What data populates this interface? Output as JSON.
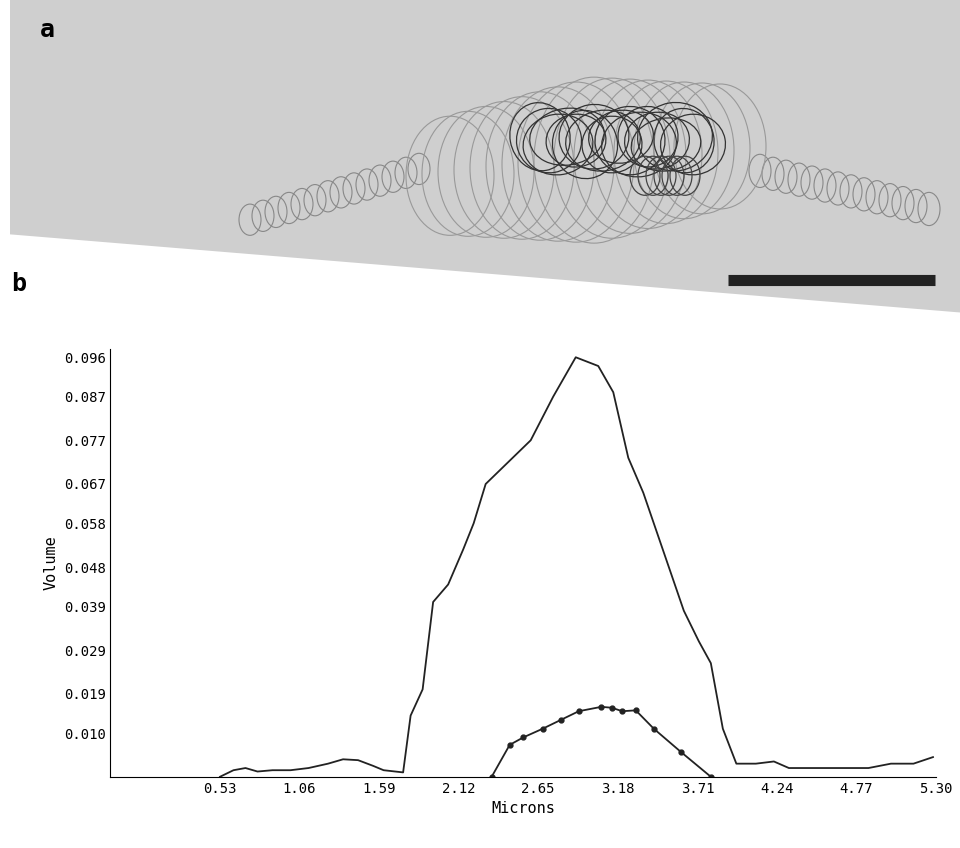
{
  "panel_labels": [
    "a",
    "b"
  ],
  "chart_data": {
    "type": "line",
    "xlabel": "Microns",
    "ylabel": "Volume",
    "xlim": [
      -0.2,
      5.3
    ],
    "xticks": [
      0.53,
      1.06,
      1.59,
      2.12,
      2.65,
      3.18,
      3.71,
      4.24,
      4.77,
      {
        "value": 5.3,
        "label": "5.30"
      }
    ],
    "ylim": [
      0,
      0.098
    ],
    "yticks": [
      {
        "value": 0.01,
        "label": "0.010"
      },
      0.019,
      0.029,
      0.039,
      0.048,
      0.058,
      0.067,
      0.077,
      0.087,
      0.096
    ],
    "grid": false,
    "series": [
      {
        "color": "#222222",
        "marker": "none",
        "x": [
          0.53,
          0.62,
          0.7,
          0.78,
          0.88,
          1.0,
          1.12,
          1.25,
          1.35,
          1.45,
          1.55,
          1.62,
          1.75,
          1.8,
          1.88,
          1.95,
          2.05,
          2.15,
          2.22,
          2.3,
          2.45,
          2.6,
          2.75,
          2.9,
          3.05,
          3.15,
          3.25,
          3.35,
          3.45,
          3.55,
          3.62,
          3.72,
          3.8,
          3.88,
          3.97,
          4.1,
          4.22,
          4.32,
          4.5,
          4.7,
          4.85,
          5.0,
          5.15,
          5.28
        ],
        "values": [
          0,
          0.0015,
          0.002,
          0.0012,
          0.0015,
          0.0015,
          0.002,
          0.003,
          0.004,
          0.0038,
          0.0025,
          0.0015,
          0.001,
          0.014,
          0.02,
          0.04,
          0.044,
          0.052,
          0.058,
          0.067,
          0.072,
          0.077,
          0.087,
          0.096,
          0.094,
          0.088,
          0.073,
          0.065,
          0.055,
          0.045,
          0.038,
          0.031,
          0.026,
          0.011,
          0.003,
          0.003,
          0.0035,
          0.002,
          0.002,
          0.002,
          0.002,
          0.003,
          0.003,
          0.0045
        ]
      },
      {
        "color": "#222222",
        "marker": "o",
        "x": [
          2.34,
          2.46,
          2.55,
          2.68,
          2.8,
          2.92,
          3.07,
          3.14,
          3.21,
          3.3,
          3.42,
          3.6,
          3.8
        ],
        "values": [
          0,
          0.0073,
          0.009,
          0.011,
          0.013,
          0.015,
          0.016,
          0.0158,
          0.015,
          0.0152,
          0.011,
          0.0057,
          0
        ]
      }
    ]
  }
}
